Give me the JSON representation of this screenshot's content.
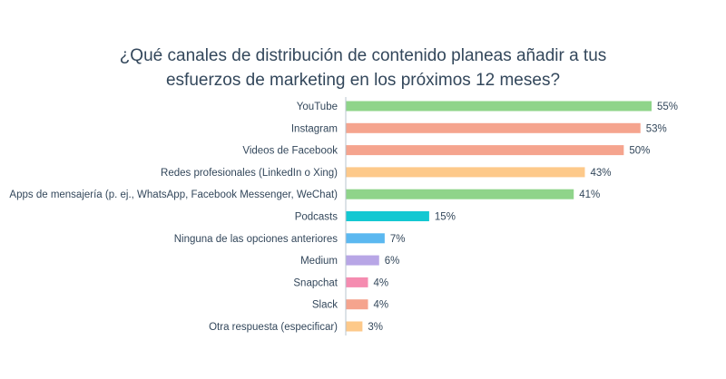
{
  "chart_data": {
    "type": "bar",
    "orientation": "horizontal",
    "title_line1": "¿Qué canales de distribución de contenido planeas añadir a tus",
    "title_line2": "esfuerzos de marketing en los próximos 12 meses?",
    "categories": [
      "YouTube",
      "Instagram",
      "Videos de Facebook",
      "Redes profesionales (LinkedIn o Xing)",
      "Apps de mensajería (p. ej., WhatsApp, Facebook Messenger, WeChat)",
      "Podcasts",
      "Ninguna de las opciones anteriores",
      "Medium",
      "Snapchat",
      "Slack",
      "Otra respuesta (especificar)"
    ],
    "values": [
      55,
      53,
      50,
      43,
      41,
      15,
      7,
      6,
      4,
      4,
      3
    ],
    "value_labels": [
      "55%",
      "53%",
      "50%",
      "43%",
      "41%",
      "15%",
      "7%",
      "6%",
      "4%",
      "4%",
      "3%"
    ],
    "colors": [
      "#8fd48a",
      "#f5a48e",
      "#f5a48e",
      "#fdc98a",
      "#8fd48a",
      "#14c8d2",
      "#5bb8f0",
      "#b8a6e6",
      "#f58cb0",
      "#f5a48e",
      "#fdc98a"
    ],
    "xlim": [
      0,
      55
    ],
    "grid": false,
    "legend": "none"
  }
}
